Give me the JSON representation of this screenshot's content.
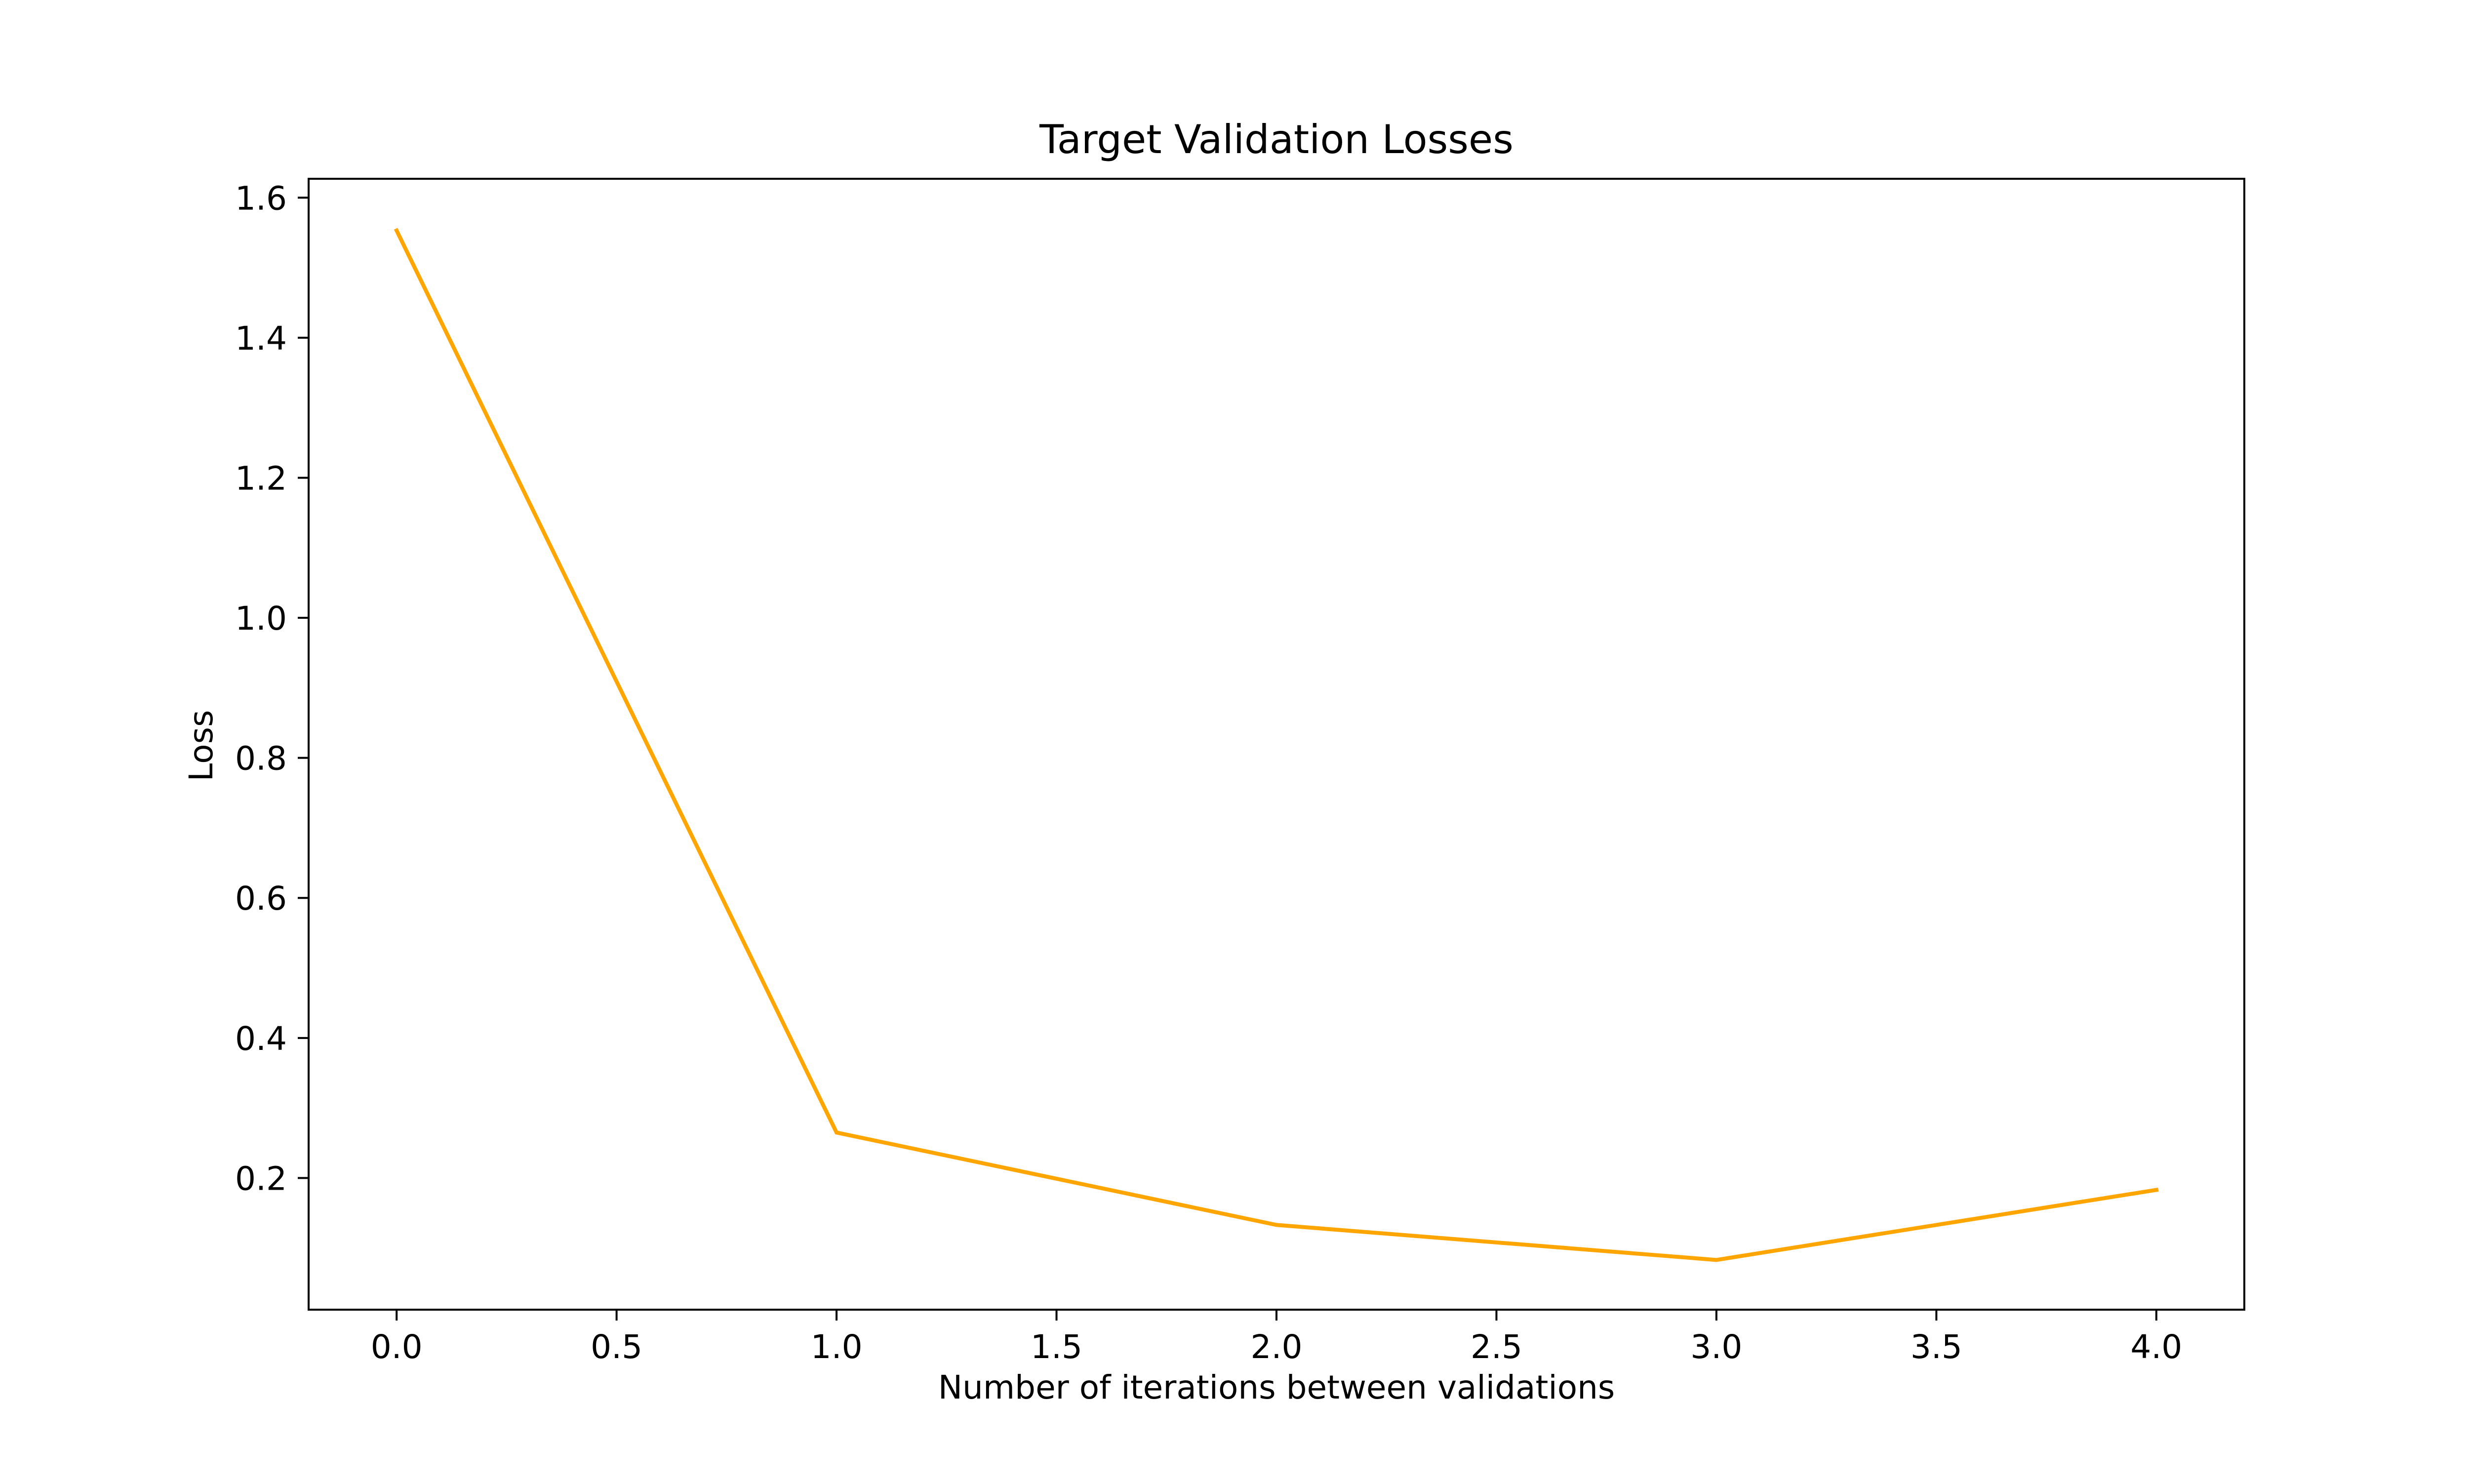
{
  "chart_data": {
    "type": "line",
    "title": "Target Validation Losses",
    "xlabel": "Number of iterations between validations",
    "ylabel": "Loss",
    "xlim": [
      -0.2,
      4.2
    ],
    "ylim": [
      0.012,
      1.627
    ],
    "x_ticks": [
      0.0,
      0.5,
      1.0,
      1.5,
      2.0,
      2.5,
      3.0,
      3.5,
      4.0
    ],
    "x_tick_labels": [
      "0.0",
      "0.5",
      "1.0",
      "1.5",
      "2.0",
      "2.5",
      "3.0",
      "3.5",
      "4.0"
    ],
    "y_ticks": [
      0.2,
      0.4,
      0.6,
      0.8,
      1.0,
      1.2,
      1.4,
      1.6
    ],
    "y_tick_labels": [
      "0.2",
      "0.4",
      "0.6",
      "0.8",
      "1.0",
      "1.2",
      "1.4",
      "1.6"
    ],
    "grid": false,
    "legend": "none",
    "series": [
      {
        "color": "#FFA500",
        "x": [
          0,
          1,
          2,
          3,
          4
        ],
        "y": [
          1.553,
          0.265,
          0.133,
          0.083,
          0.183
        ]
      }
    ]
  }
}
